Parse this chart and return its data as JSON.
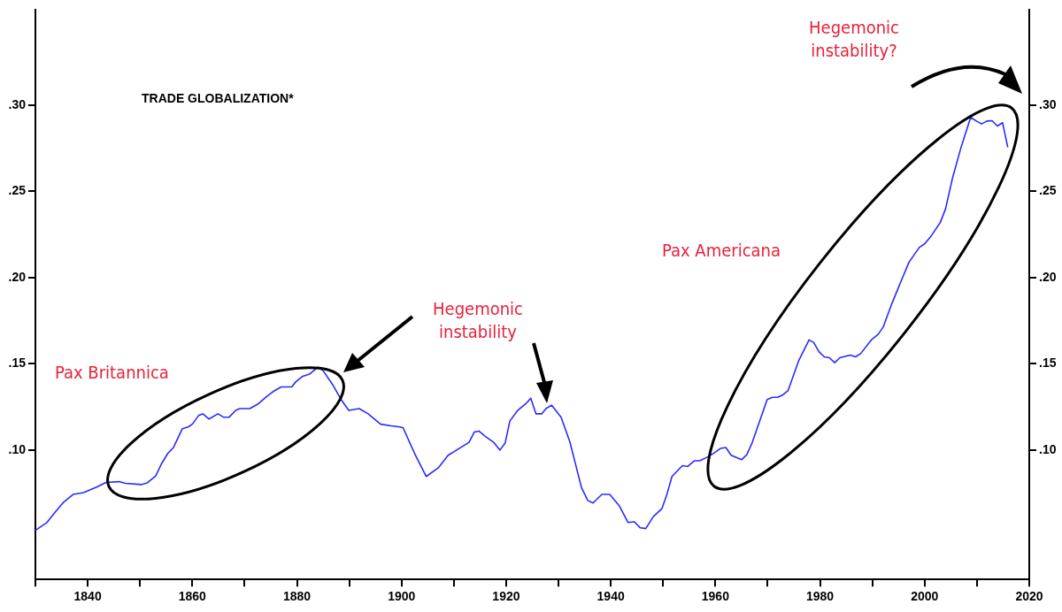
{
  "chart_data": {
    "type": "line",
    "title": "TRADE GLOBALIZATION*",
    "annotations": [
      "Pax Britannica",
      "Hegemonic instability",
      "Pax Americana",
      "Hegemonic instability?"
    ],
    "series": [
      {
        "color": "#2a2aff",
        "x": [
          1830,
          1832.2,
          1833.9,
          1835.4,
          1837.2,
          1839.2,
          1841.8,
          1843.5,
          1846,
          1847.2,
          1850.2,
          1851.4,
          1853,
          1854.1,
          1855.3,
          1856.4,
          1858.1,
          1859.2,
          1860,
          1861.2,
          1862,
          1863.2,
          1864.9,
          1866,
          1867,
          1868.3,
          1869.1,
          1871,
          1872.7,
          1874.2,
          1875.5,
          1877,
          1879,
          1879.8,
          1881,
          1882.4,
          1884,
          1885,
          1886.9,
          1888.5,
          1889.9,
          1891.9,
          1893.6,
          1896,
          1898,
          1899.7,
          1900.3,
          1902.5,
          1904.7,
          1907,
          1908.9,
          1910,
          1912.9,
          1913.9,
          1914.8,
          1916,
          1917.6,
          1918.8,
          1919.8,
          1920.7,
          1922.2,
          1923.8,
          1924.7,
          1925.7,
          1926.8,
          1927.6,
          1928.7,
          1930.5,
          1932.2,
          1934.4,
          1935.6,
          1936.6,
          1938.3,
          1939.8,
          1941.6,
          1943.3,
          1944.5,
          1945.6,
          1946.7,
          1948.1,
          1949.8,
          1950.7,
          1951.7,
          1953.7,
          1954.7,
          1956,
          1957,
          1958.7,
          1959.7,
          1961,
          1962,
          1963,
          1965,
          1966,
          1967,
          1969.9,
          1970.9,
          1971.9,
          1972.9,
          1973.9,
          1975.9,
          1977.9,
          1978.8,
          1979.8,
          1980.8,
          1981.8,
          1982.8,
          1983.8,
          1985.8,
          1986.8,
          1987.8,
          1989.8,
          1991.1,
          1992.1,
          1993.7,
          1995.4,
          1997,
          1999,
          2000,
          2001.3,
          2003,
          2004,
          2005.3,
          2006.9,
          2008.8,
          2009.9,
          2010.9,
          2011.9,
          2012.9,
          2013.9,
          2014.9,
          2015.9
        ],
        "values": [
          0.0535,
          0.058,
          0.0644,
          0.0698,
          0.0743,
          0.0753,
          0.0787,
          0.0812,
          0.0817,
          0.0807,
          0.08,
          0.081,
          0.085,
          0.092,
          0.098,
          0.1015,
          0.1124,
          0.1134,
          0.115,
          0.12,
          0.121,
          0.118,
          0.121,
          0.119,
          0.119,
          0.123,
          0.124,
          0.124,
          0.127,
          0.131,
          0.134,
          0.1366,
          0.1366,
          0.1396,
          0.1426,
          0.144,
          0.148,
          0.146,
          0.1376,
          0.129,
          0.123,
          0.124,
          0.121,
          0.115,
          0.114,
          0.1134,
          0.1129,
          0.098,
          0.0847,
          0.0896,
          0.097,
          0.099,
          0.1045,
          0.1104,
          0.111,
          0.108,
          0.1045,
          0.1,
          0.104,
          0.1168,
          0.123,
          0.127,
          0.13,
          0.121,
          0.121,
          0.124,
          0.126,
          0.119,
          0.1045,
          0.0782,
          0.0708,
          0.0693,
          0.0743,
          0.0743,
          0.0678,
          0.058,
          0.0584,
          0.055,
          0.0545,
          0.0613,
          0.0662,
          0.074,
          0.0847,
          0.091,
          0.0905,
          0.0938,
          0.0938,
          0.0963,
          0.0982,
          0.101,
          0.1015,
          0.097,
          0.0944,
          0.0973,
          0.104,
          0.1293,
          0.1306,
          0.1306,
          0.132,
          0.1345,
          0.1516,
          0.1638,
          0.1623,
          0.157,
          0.154,
          0.1535,
          0.1506,
          0.1535,
          0.155,
          0.154,
          0.156,
          0.1638,
          0.167,
          0.1714,
          0.1846,
          0.1972,
          0.2088,
          0.2175,
          0.2195,
          0.2243,
          0.232,
          0.2398,
          0.2573,
          0.2748,
          0.2928,
          0.2907,
          0.289,
          0.2907,
          0.2909,
          0.2878,
          0.2897,
          0.2754
        ]
      }
    ],
    "xlim": [
      1830,
      2020
    ],
    "xticks": [
      {
        "value": 1830,
        "label": null
      },
      1840,
      {
        "value": 1850,
        "label": null
      },
      1860,
      {
        "value": 1870,
        "label": null
      },
      1880,
      {
        "value": 1890,
        "label": null
      },
      1900,
      {
        "value": 1910,
        "label": null
      },
      1920,
      {
        "value": 1930,
        "label": null
      },
      1940,
      {
        "value": 1950,
        "label": null
      },
      1960,
      {
        "value": 1970,
        "label": null
      },
      1980,
      {
        "value": 1990,
        "label": null
      },
      2000,
      {
        "value": 2010,
        "label": null
      },
      2020
    ],
    "ylim": [
      0.025,
      0.355
    ],
    "yticks": [
      {
        "value": 0.1,
        "label": ".10"
      },
      {
        "value": 0.15,
        "label": ".15"
      },
      {
        "value": 0.2,
        "label": ".20"
      },
      {
        "value": 0.25,
        "label": ".25"
      },
      {
        "value": 0.3,
        "label": ".30"
      }
    ],
    "y2lim": [
      0.025,
      0.355
    ],
    "y2ticks": [
      {
        "value": 0.1,
        "label": ".10"
      },
      {
        "value": 0.15,
        "label": ".15"
      },
      {
        "value": 0.2,
        "label": ".20"
      },
      {
        "value": 0.25,
        "label": ".25"
      },
      {
        "value": 0.3,
        "label": ".30"
      }
    ]
  }
}
